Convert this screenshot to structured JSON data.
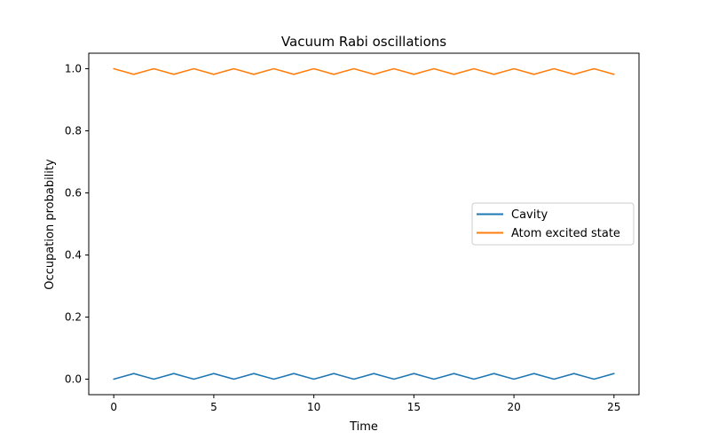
{
  "chart_data": {
    "type": "line",
    "title": "Vacuum Rabi oscillations",
    "xlabel": "Time",
    "ylabel": "Occupation probability",
    "xlim": [
      -1.25,
      26.25
    ],
    "ylim": [
      -0.05,
      1.05
    ],
    "xticks": [
      0,
      5,
      10,
      15,
      20,
      25
    ],
    "xtick_labels": [
      "0",
      "5",
      "10",
      "15",
      "20",
      "25"
    ],
    "yticks": [
      0.0,
      0.2,
      0.4,
      0.6,
      0.8,
      1.0
    ],
    "ytick_labels": [
      "0.0",
      "0.2",
      "0.4",
      "0.6",
      "0.8",
      "1.0"
    ],
    "grid": false,
    "legend_position": "center-right",
    "series": [
      {
        "name": "Cavity",
        "color": "#1f77b4",
        "x": [
          0,
          0.5,
          1,
          1.5,
          2,
          2.5,
          3,
          3.5,
          4,
          4.5,
          5,
          5.5,
          6,
          6.5,
          7,
          7.5,
          8,
          8.5,
          9,
          9.5,
          10,
          10.5,
          11,
          11.5,
          12,
          12.5,
          13,
          13.5,
          14,
          14.5,
          15,
          15.5,
          16,
          16.5,
          17,
          17.5,
          18,
          18.5,
          19,
          19.5,
          20,
          20.5,
          21,
          21.5,
          22,
          22.5,
          23,
          23.5,
          24,
          24.5,
          25
        ],
        "y": [
          0.0,
          0.009,
          0.018,
          0.009,
          0.0,
          0.009,
          0.018,
          0.009,
          0.0,
          0.009,
          0.018,
          0.009,
          0.0,
          0.009,
          0.018,
          0.009,
          0.0,
          0.009,
          0.018,
          0.009,
          0.0,
          0.009,
          0.018,
          0.009,
          0.0,
          0.009,
          0.018,
          0.009,
          0.0,
          0.009,
          0.018,
          0.009,
          0.0,
          0.009,
          0.018,
          0.009,
          0.0,
          0.009,
          0.018,
          0.009,
          0.0,
          0.009,
          0.018,
          0.009,
          0.0,
          0.009,
          0.018,
          0.009,
          0.0,
          0.009,
          0.018
        ]
      },
      {
        "name": "Atom excited state",
        "color": "#ff7f0e",
        "x": [
          0,
          0.5,
          1,
          1.5,
          2,
          2.5,
          3,
          3.5,
          4,
          4.5,
          5,
          5.5,
          6,
          6.5,
          7,
          7.5,
          8,
          8.5,
          9,
          9.5,
          10,
          10.5,
          11,
          11.5,
          12,
          12.5,
          13,
          13.5,
          14,
          14.5,
          15,
          15.5,
          16,
          16.5,
          17,
          17.5,
          18,
          18.5,
          19,
          19.5,
          20,
          20.5,
          21,
          21.5,
          22,
          22.5,
          23,
          23.5,
          24,
          24.5,
          25
        ],
        "y": [
          1.0,
          0.991,
          0.982,
          0.991,
          1.0,
          0.991,
          0.982,
          0.991,
          1.0,
          0.991,
          0.982,
          0.991,
          1.0,
          0.991,
          0.982,
          0.991,
          1.0,
          0.991,
          0.982,
          0.991,
          1.0,
          0.991,
          0.982,
          0.991,
          1.0,
          0.991,
          0.982,
          0.991,
          1.0,
          0.991,
          0.982,
          0.991,
          1.0,
          0.991,
          0.982,
          0.991,
          1.0,
          0.991,
          0.982,
          0.991,
          1.0,
          0.991,
          0.982,
          0.991,
          1.0,
          0.991,
          0.982,
          0.991,
          1.0,
          0.991,
          0.982
        ]
      }
    ]
  }
}
